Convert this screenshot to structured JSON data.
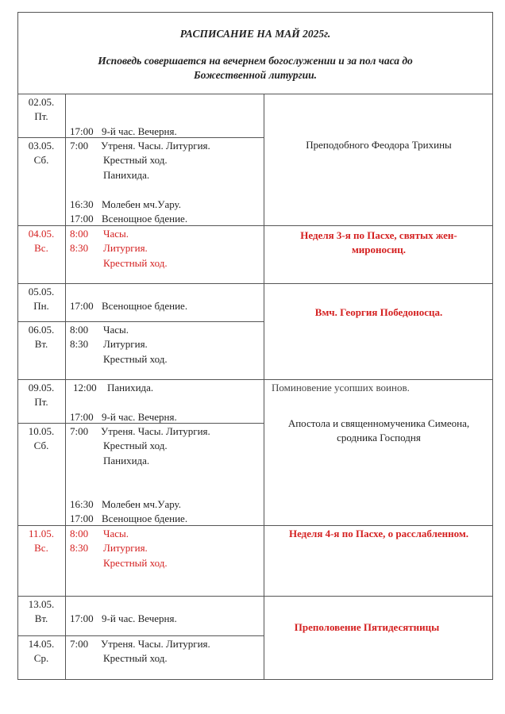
{
  "header": {
    "title": "РАСПИСАНИЕ НА МАЙ 2025г.",
    "subtitle_line1": "Исповедь совершается на вечернем богослужении и  за пол часа до",
    "subtitle_line2": "Божественной литургии."
  },
  "colors": {
    "red": "#d42020",
    "text": "#222222"
  },
  "days": [
    {
      "date": "02.05.",
      "weekday": "Пт.",
      "red": false,
      "lines": [
        {
          "time": "",
          "text": ""
        },
        {
          "time": "",
          "text": ""
        },
        {
          "time": "17:00",
          "text": "9-й час. Вечерня."
        }
      ]
    },
    {
      "date": "03.05.",
      "weekday": "Сб.",
      "red": false,
      "lines": [
        {
          "time": "7:00",
          "text": "Утреня. Часы. Литургия."
        },
        {
          "time": "",
          "text": "Крестный ход."
        },
        {
          "time": "",
          "text": "Панихида."
        },
        {
          "time": "",
          "text": ""
        },
        {
          "time": "16:30",
          "text": "Молебен  мч.Уару."
        },
        {
          "time": "17:00",
          "text": "Всенощное бдение."
        }
      ]
    },
    {
      "date": "04.05.",
      "weekday": "Вс.",
      "red": true,
      "lines": [
        {
          "time": "8:00",
          "text": "Часы."
        },
        {
          "time": "8:30",
          "text": "Литургия."
        },
        {
          "time": "",
          "text": "Крестный ход."
        }
      ]
    },
    {
      "date": "05.05.",
      "weekday": "Пн.",
      "red": false,
      "lines": [
        {
          "time": "",
          "text": ""
        },
        {
          "time": "17:00",
          "text": "Всенощное бдение."
        }
      ]
    },
    {
      "date": "06.05.",
      "weekday": "Вт.",
      "red": false,
      "lines": [
        {
          "time": "8:00",
          "text": "Часы."
        },
        {
          "time": "8:30",
          "text": "Литургия."
        },
        {
          "time": "",
          "text": "Крестный ход."
        }
      ]
    },
    {
      "date": "09.05.",
      "weekday": "Пт.",
      "red": false,
      "lines": [
        {
          "time": "12:00",
          "text": "Панихида."
        },
        {
          "time": "",
          "text": ""
        },
        {
          "time": "17:00",
          "text": "9-й час. Вечерня."
        }
      ]
    },
    {
      "date": "10.05.",
      "weekday": "Сб.",
      "red": false,
      "lines": [
        {
          "time": "7:00",
          "text": "Утреня. Часы. Литургия."
        },
        {
          "time": "",
          "text": "Крестный ход."
        },
        {
          "time": "",
          "text": "Панихида."
        },
        {
          "time": "",
          "text": ""
        },
        {
          "time": "",
          "text": ""
        },
        {
          "time": "16:30",
          "text": "Молебен  мч.Уару."
        },
        {
          "time": "17:00",
          "text": "Всенощное бдение."
        }
      ]
    },
    {
      "date": "11.05.",
      "weekday": "Вс.",
      "red": true,
      "lines": [
        {
          "time": "8:00",
          "text": "Часы."
        },
        {
          "time": "8:30",
          "text": "Литургия."
        },
        {
          "time": "",
          "text": "Крестный ход."
        }
      ]
    },
    {
      "date": "13.05.",
      "weekday": "Вт.",
      "red": false,
      "lines": [
        {
          "time": "",
          "text": ""
        },
        {
          "time": "17:00",
          "text": "9-й час. Вечерня."
        }
      ]
    },
    {
      "date": "14.05.",
      "weekday": "Ср.",
      "red": false,
      "lines": [
        {
          "time": "7:00",
          "text": "Утреня. Часы. Литургия."
        },
        {
          "time": "",
          "text": "Крестный ход."
        }
      ]
    }
  ],
  "feasts": [
    {
      "lines": [
        "Преподобного Феодора Трихины"
      ],
      "red": false
    },
    {
      "lines": [
        "Неделя 3-я по Пасхе,  святых жен-",
        "мироносиц."
      ],
      "red": true
    },
    {
      "lines": [
        "Вмч. Георгия Победоносца."
      ],
      "red": true
    },
    {
      "note": "Поминовение усопших воинов.",
      "lines": [
        "Апостола и священномученика  Симеона,",
        "сродника Господня"
      ],
      "red": false
    },
    {
      "lines": [
        "Неделя 4-я по Пасхе,  о расслабленном."
      ],
      "red": true
    },
    {
      "lines": [
        "Преполовение Пятидесятницы"
      ],
      "red": true
    }
  ]
}
